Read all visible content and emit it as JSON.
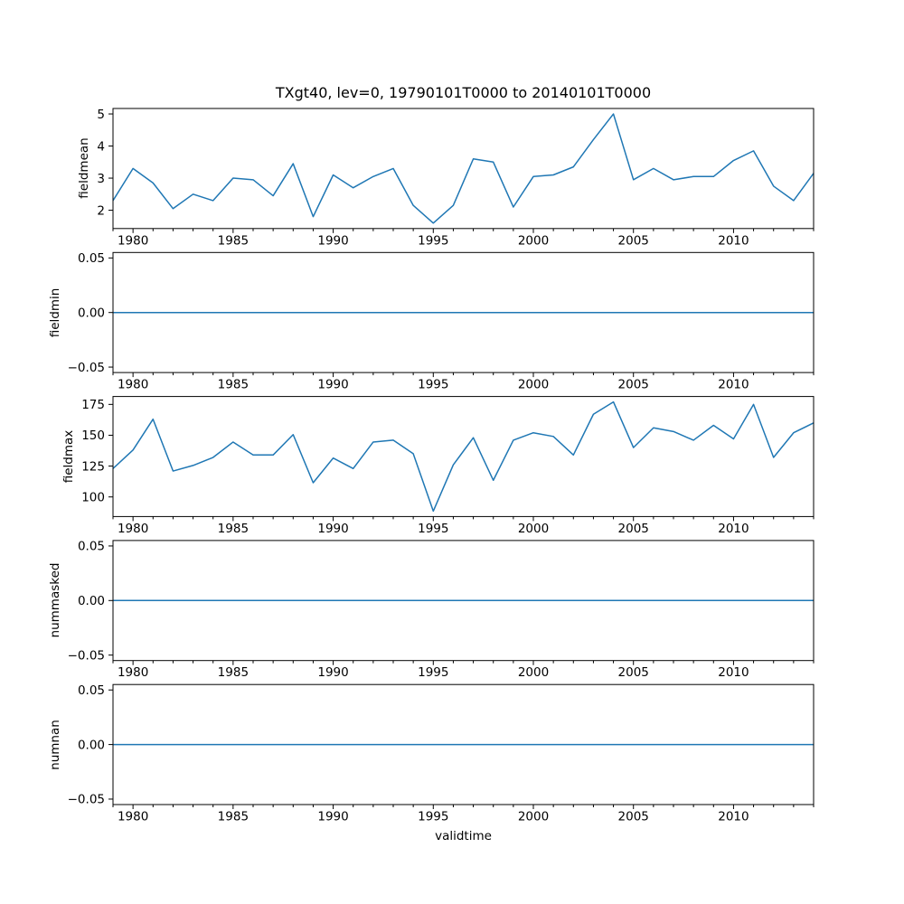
{
  "figure": {
    "title": "TXgt40, lev=0, 19790101T0000 to 20140101T0000",
    "xlabel": "validtime",
    "colors": {
      "line": "#1f77b4",
      "spine": "#000000",
      "text": "#000000",
      "background": "#ffffff"
    },
    "x": {
      "start": 1979,
      "end": 2014,
      "major_ticks": [
        1980,
        1985,
        1990,
        1995,
        2000,
        2005,
        2010
      ],
      "major_tick_labels": [
        "1980",
        "1985",
        "1990",
        "1995",
        "2000",
        "2005",
        "2010"
      ],
      "minor_tick_every": 1,
      "years": [
        1979,
        1980,
        1981,
        1982,
        1983,
        1984,
        1985,
        1986,
        1987,
        1988,
        1989,
        1990,
        1991,
        1992,
        1993,
        1994,
        1995,
        1996,
        1997,
        1998,
        1999,
        2000,
        2001,
        2002,
        2003,
        2004,
        2005,
        2006,
        2007,
        2008,
        2009,
        2010,
        2011,
        2012,
        2013,
        2014
      ]
    }
  },
  "chart_data": [
    {
      "type": "line",
      "name": "fieldmean",
      "ylabel": "fieldmean",
      "ylim": [
        1.43,
        5.17
      ],
      "ytick_values": [
        2,
        3,
        4,
        5
      ],
      "ytick_labels": [
        "2",
        "3",
        "4",
        "5"
      ],
      "grid": false,
      "values": [
        2.3,
        3.3,
        2.85,
        2.05,
        2.5,
        2.3,
        3.0,
        2.95,
        2.45,
        3.45,
        1.8,
        3.1,
        2.7,
        3.05,
        3.3,
        2.15,
        1.6,
        2.15,
        3.6,
        3.5,
        2.1,
        3.05,
        3.1,
        3.35,
        4.2,
        5.0,
        2.95,
        3.3,
        2.95,
        3.05,
        3.05,
        3.55,
        3.85,
        2.75,
        2.3,
        3.15
      ]
    },
    {
      "type": "line",
      "name": "fieldmin",
      "ylabel": "fieldmin",
      "ylim": [
        -0.055,
        0.055
      ],
      "ytick_values": [
        -0.05,
        0.0,
        0.05
      ],
      "ytick_labels": [
        "−0.05",
        "0.00",
        "0.05"
      ],
      "grid": false,
      "values": [
        0,
        0,
        0,
        0,
        0,
        0,
        0,
        0,
        0,
        0,
        0,
        0,
        0,
        0,
        0,
        0,
        0,
        0,
        0,
        0,
        0,
        0,
        0,
        0,
        0,
        0,
        0,
        0,
        0,
        0,
        0,
        0,
        0,
        0,
        0,
        0
      ]
    },
    {
      "type": "line",
      "name": "fieldmax",
      "ylabel": "fieldmax",
      "ylim": [
        84.1,
        181.4
      ],
      "ytick_values": [
        100,
        125,
        150,
        175
      ],
      "ytick_labels": [
        "100",
        "125",
        "150",
        "175"
      ],
      "grid": false,
      "values": [
        123,
        138,
        163,
        121,
        125.5,
        132,
        144.5,
        134,
        134,
        150.5,
        111.5,
        131.5,
        123,
        144.5,
        146,
        135,
        88.5,
        126,
        148,
        113.5,
        146,
        152,
        149,
        134,
        167,
        177,
        140,
        156,
        153,
        146,
        158,
        147,
        175,
        132,
        152,
        160
      ]
    },
    {
      "type": "line",
      "name": "nummasked",
      "ylabel": "nummasked",
      "ylim": [
        -0.055,
        0.055
      ],
      "ytick_values": [
        -0.05,
        0.0,
        0.05
      ],
      "ytick_labels": [
        "−0.05",
        "0.00",
        "0.05"
      ],
      "grid": false,
      "values": [
        0,
        0,
        0,
        0,
        0,
        0,
        0,
        0,
        0,
        0,
        0,
        0,
        0,
        0,
        0,
        0,
        0,
        0,
        0,
        0,
        0,
        0,
        0,
        0,
        0,
        0,
        0,
        0,
        0,
        0,
        0,
        0,
        0,
        0,
        0,
        0
      ]
    },
    {
      "type": "line",
      "name": "numnan",
      "ylabel": "numnan",
      "ylim": [
        -0.055,
        0.055
      ],
      "ytick_values": [
        -0.05,
        0.0,
        0.05
      ],
      "ytick_labels": [
        "−0.05",
        "0.00",
        "0.05"
      ],
      "grid": false,
      "values": [
        0,
        0,
        0,
        0,
        0,
        0,
        0,
        0,
        0,
        0,
        0,
        0,
        0,
        0,
        0,
        0,
        0,
        0,
        0,
        0,
        0,
        0,
        0,
        0,
        0,
        0,
        0,
        0,
        0,
        0,
        0,
        0,
        0,
        0,
        0,
        0
      ]
    }
  ]
}
